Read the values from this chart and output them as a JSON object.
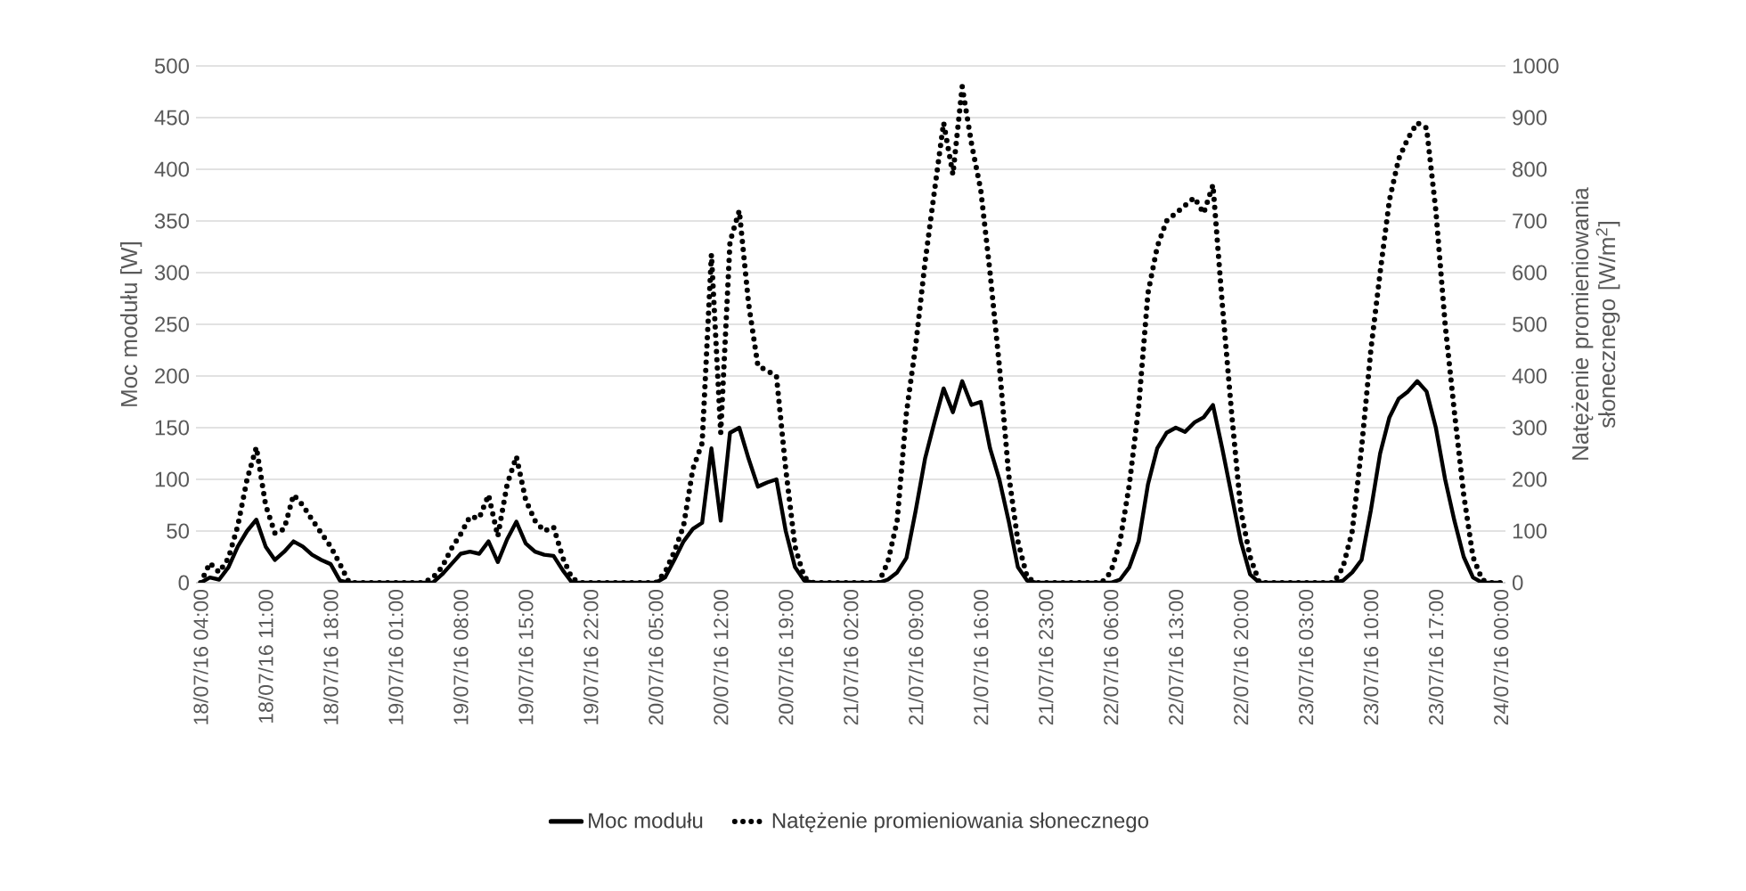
{
  "chart_data": {
    "type": "line",
    "categories": [
      "18/07/16 04:00",
      null,
      null,
      null,
      null,
      null,
      null,
      "18/07/16 11:00",
      null,
      null,
      null,
      null,
      null,
      null,
      "18/07/16 18:00",
      null,
      null,
      null,
      null,
      null,
      null,
      "19/07/16 01:00",
      null,
      null,
      null,
      null,
      null,
      null,
      "19/07/16 08:00",
      null,
      null,
      null,
      null,
      null,
      null,
      "19/07/16 15:00",
      null,
      null,
      null,
      null,
      null,
      null,
      "19/07/16 22:00",
      null,
      null,
      null,
      null,
      null,
      null,
      "20/07/16 05:00",
      null,
      null,
      null,
      null,
      null,
      null,
      "20/07/16 12:00",
      null,
      null,
      null,
      null,
      null,
      null,
      "20/07/16 19:00",
      null,
      null,
      null,
      null,
      null,
      null,
      "21/07/16 02:00",
      null,
      null,
      null,
      null,
      null,
      null,
      "21/07/16 09:00",
      null,
      null,
      null,
      null,
      null,
      null,
      "21/07/16 16:00",
      null,
      null,
      null,
      null,
      null,
      null,
      "21/07/16 23:00",
      null,
      null,
      null,
      null,
      null,
      null,
      "22/07/16 06:00",
      null,
      null,
      null,
      null,
      null,
      null,
      "22/07/16 13:00",
      null,
      null,
      null,
      null,
      null,
      null,
      "22/07/16 20:00",
      null,
      null,
      null,
      null,
      null,
      null,
      "23/07/16 03:00",
      null,
      null,
      null,
      null,
      null,
      null,
      "23/07/16 10:00",
      null,
      null,
      null,
      null,
      null,
      null,
      "23/07/16 17:00",
      null,
      null,
      null,
      null,
      null,
      null,
      "24/07/16 00:00"
    ],
    "series": [
      {
        "name": "Moc modułu",
        "color": "#000000",
        "line_style": "solid",
        "values": [
          0,
          5,
          3,
          15,
          35,
          50,
          61,
          35,
          22,
          30,
          40,
          35,
          27,
          22,
          18,
          2,
          0,
          0,
          0,
          0,
          0,
          0,
          0,
          0,
          0,
          0,
          8,
          18,
          28,
          30,
          28,
          40,
          20,
          42,
          59,
          38,
          30,
          27,
          26,
          12,
          0,
          0,
          0,
          0,
          0,
          0,
          0,
          0,
          0,
          0,
          5,
          22,
          40,
          52,
          58,
          130,
          60,
          145,
          150,
          120,
          93,
          97,
          100,
          50,
          15,
          2,
          0,
          0,
          0,
          0,
          0,
          0,
          0,
          0,
          3,
          10,
          24,
          70,
          120,
          155,
          188,
          165,
          195,
          172,
          175,
          130,
          100,
          60,
          15,
          2,
          0,
          0,
          0,
          0,
          0,
          0,
          0,
          0,
          0,
          3,
          15,
          40,
          95,
          130,
          145,
          150,
          146,
          155,
          160,
          172,
          130,
          85,
          40,
          8,
          0,
          0,
          0,
          0,
          0,
          0,
          0,
          0,
          0,
          2,
          10,
          22,
          70,
          125,
          160,
          178,
          185,
          195,
          185,
          150,
          100,
          60,
          25,
          5,
          0,
          0,
          0
        ]
      },
      {
        "name": "Natężenie promieniowania słonecznego",
        "color": "#000000",
        "line_style": "dotted",
        "axis": "y2",
        "values": [
          0,
          38,
          20,
          48,
          110,
          200,
          262,
          150,
          96,
          104,
          170,
          150,
          122,
          96,
          70,
          36,
          0,
          0,
          0,
          0,
          0,
          0,
          0,
          0,
          0,
          10,
          30,
          66,
          94,
          128,
          125,
          170,
          90,
          190,
          244,
          160,
          120,
          100,
          108,
          48,
          8,
          0,
          0,
          0,
          0,
          0,
          0,
          0,
          0,
          0,
          20,
          60,
          110,
          220,
          270,
          635,
          290,
          660,
          720,
          540,
          420,
          410,
          400,
          220,
          70,
          10,
          0,
          0,
          0,
          0,
          0,
          0,
          0,
          0,
          40,
          120,
          330,
          460,
          620,
          756,
          890,
          790,
          960,
          850,
          760,
          600,
          420,
          210,
          80,
          10,
          0,
          0,
          0,
          0,
          0,
          0,
          0,
          0,
          20,
          80,
          190,
          340,
          560,
          650,
          700,
          715,
          730,
          745,
          715,
          770,
          540,
          330,
          140,
          50,
          0,
          0,
          0,
          0,
          0,
          0,
          0,
          0,
          0,
          30,
          100,
          260,
          450,
          600,
          740,
          820,
          860,
          890,
          880,
          720,
          500,
          330,
          170,
          50,
          5,
          0,
          0
        ]
      }
    ],
    "ylabel": "Moc modułu [W]",
    "y2label": "Natężenie promieniowania słonecznego [W/m$^{2}$]",
    "ylim": [
      0,
      500
    ],
    "yticks": [
      0,
      50,
      100,
      150,
      200,
      250,
      300,
      350,
      400,
      450,
      500
    ],
    "y2lim": [
      0,
      1000
    ],
    "y2ticks": [
      0,
      100,
      200,
      300,
      400,
      500,
      600,
      700,
      800,
      900,
      1000
    ],
    "grid": "y",
    "legend": "bottom"
  }
}
